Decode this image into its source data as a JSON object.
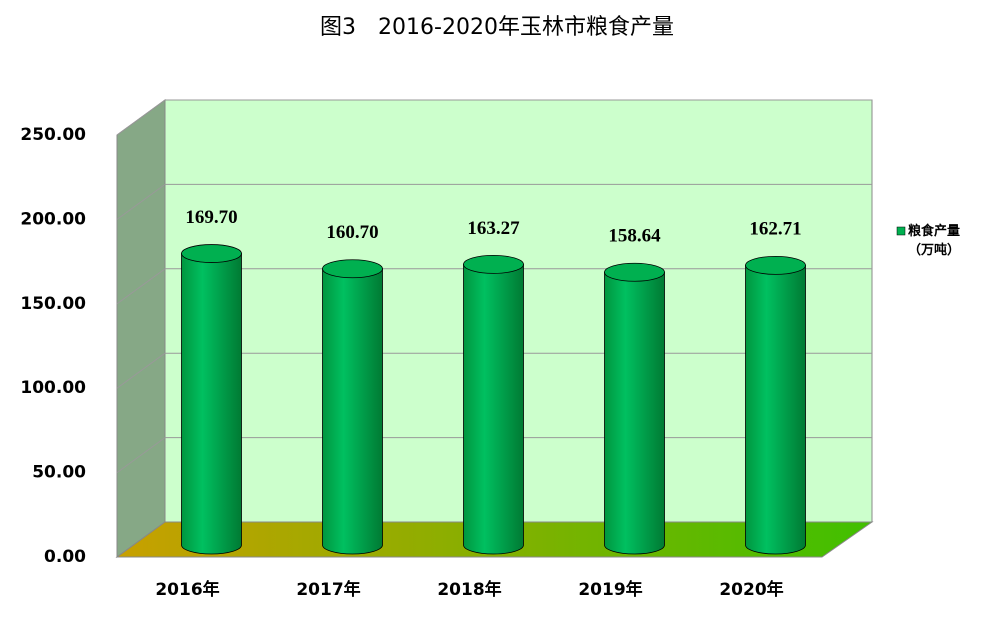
{
  "chart_data": {
    "type": "bar3d",
    "title": "图3　2016-2020年玉林市粮食产量",
    "categories": [
      "2016年",
      "2017年",
      "2018年",
      "2019年",
      "2020年"
    ],
    "series": [
      {
        "name": "粮食产量（万吨）",
        "color": "#00b050",
        "values": [
          169.7,
          160.7,
          163.27,
          158.64,
          162.71
        ],
        "value_labels": [
          "169.70",
          "160.70",
          "163.27",
          "158.64",
          "162.71"
        ]
      }
    ],
    "ylim": [
      0,
      250
    ],
    "yticks": [
      {
        "value": 0,
        "label": "0.00"
      },
      {
        "value": 50,
        "label": "50.00"
      },
      {
        "value": 100,
        "label": "100.00"
      },
      {
        "value": 150,
        "label": "150.00"
      },
      {
        "value": 200,
        "label": "200.00"
      },
      {
        "value": 250,
        "label": "250.00"
      }
    ],
    "grid": true,
    "legend": "right"
  }
}
